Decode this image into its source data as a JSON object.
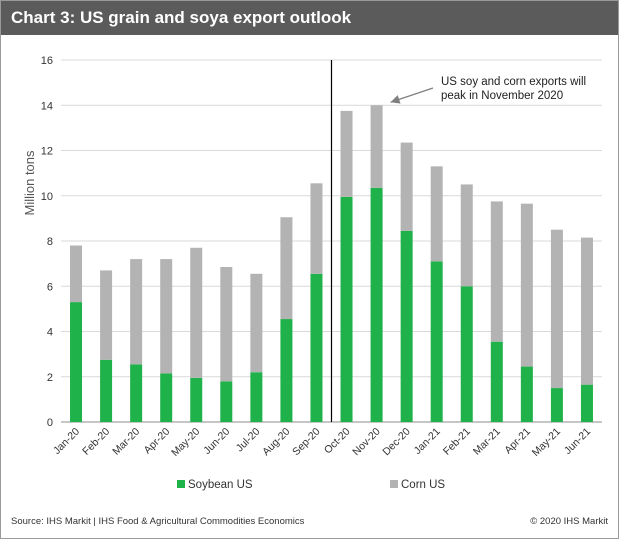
{
  "title": "Chart 3: US grain and soya export outlook",
  "footer": {
    "source": "Source: IHS Markit | IHS Food & Agricultural Commodities Economics",
    "copyright": "© 2020 IHS Markit"
  },
  "colors": {
    "header_bg": "#5b5b5b",
    "soybean": "#1fb24a",
    "corn": "#b3b3b3",
    "grid": "#d9d9d9",
    "axis_text": "#333333"
  },
  "chart_data": {
    "type": "bar",
    "stacked": true,
    "title": "",
    "xlabel": "",
    "ylabel": "Million tons",
    "ylim": [
      0,
      16
    ],
    "yticks": [
      0,
      2,
      4,
      6,
      8,
      10,
      12,
      14,
      16
    ],
    "grid": true,
    "legend_position": "bottom",
    "categories": [
      "Jan-20",
      "Feb-20",
      "Mar-20",
      "Apr-20",
      "May-20",
      "Jun-20",
      "Jul-20",
      "Aug-20",
      "Sep-20",
      "Oct-20",
      "Nov-20",
      "Dec-20",
      "Jan-21",
      "Feb-21",
      "Mar-21",
      "Apr-21",
      "May-21",
      "Jun-21"
    ],
    "series": [
      {
        "name": "Soybean US",
        "color": "#1fb24a",
        "values": [
          5.3,
          2.75,
          2.55,
          2.15,
          1.95,
          1.8,
          2.2,
          4.55,
          6.55,
          9.95,
          10.35,
          8.45,
          7.1,
          6.0,
          3.55,
          2.45,
          1.5,
          1.65
        ]
      },
      {
        "name": "Corn US",
        "color": "#b3b3b3",
        "values": [
          2.5,
          3.95,
          4.65,
          5.05,
          5.75,
          5.05,
          4.35,
          4.5,
          4.0,
          3.8,
          3.65,
          3.9,
          4.2,
          4.5,
          6.2,
          7.2,
          7.0,
          6.5
        ]
      }
    ],
    "divider_after_category": "Sep-20",
    "annotation": {
      "lines": [
        "US soy and corn exports will",
        "peak in November 2020"
      ],
      "target_category": "Nov-20"
    }
  }
}
